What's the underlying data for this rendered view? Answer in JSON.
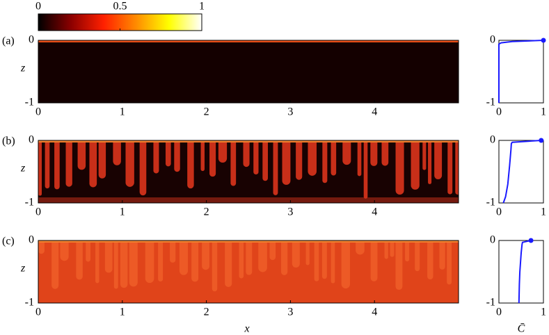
{
  "chart_data": [
    {
      "type": "colorbar",
      "lim": [
        0,
        1
      ],
      "ticks": [
        0,
        0.5,
        1
      ],
      "colors": [
        "#000000",
        "#8b0000",
        "#ff2000",
        "#ff8c00",
        "#ffff00",
        "#ffffff"
      ]
    },
    {
      "type": "field",
      "label": "(a)",
      "ylabel": "z",
      "xlim": [
        0,
        5
      ],
      "xticks": [
        0,
        1,
        2,
        3,
        4
      ],
      "ylim": [
        -1,
        0
      ],
      "yticks": [
        -1,
        0
      ],
      "background": "#140000",
      "finger_color": "#e8501a"
    },
    {
      "type": "line",
      "x": [
        0,
        0,
        0.05,
        0.3,
        1
      ],
      "y": [
        -1,
        -0.06,
        -0.04,
        -0.02,
        0
      ],
      "color": "#1a1aff",
      "xlim": [
        0,
        1
      ],
      "xticks": [
        0,
        1
      ],
      "ylim": [
        -1,
        0
      ],
      "yticks": [
        -1,
        0
      ]
    },
    {
      "type": "field",
      "label": "(b)",
      "ylabel": "z",
      "xlim": [
        0,
        5
      ],
      "xticks": [
        0,
        1,
        2,
        3,
        4
      ],
      "ylim": [
        -1,
        0
      ],
      "yticks": [
        -1,
        0
      ],
      "background": "#180202",
      "finger_color": "#d2321a"
    },
    {
      "type": "line",
      "x": [
        0.1,
        0.12,
        0.15,
        0.2,
        0.24,
        0.27,
        0.28,
        0.3,
        0.95
      ],
      "y": [
        -1,
        -0.96,
        -0.9,
        -0.7,
        -0.4,
        -0.15,
        -0.05,
        -0.03,
        0
      ],
      "color": "#1a1aff",
      "xlim": [
        0,
        1
      ],
      "xticks": [
        0,
        1
      ],
      "ylim": [
        -1,
        0
      ],
      "yticks": [
        -1,
        0
      ]
    },
    {
      "type": "field",
      "label": "(c)",
      "ylabel": "z",
      "xlabel": "x",
      "xlim": [
        0,
        5
      ],
      "xticks": [
        0,
        1,
        2,
        3,
        4
      ],
      "ylim": [
        -1,
        0
      ],
      "yticks": [
        -1,
        0
      ],
      "background": "#e0441a",
      "finger_color": "#f2642c"
    },
    {
      "type": "line",
      "x": [
        0.45,
        0.46,
        0.47,
        0.5,
        0.52,
        0.53,
        0.72
      ],
      "y": [
        -1,
        -0.7,
        -0.5,
        -0.2,
        -0.06,
        -0.03,
        0
      ],
      "color": "#1a1aff",
      "xlabel": "C̄",
      "xlim": [
        0,
        1
      ],
      "xticks": [
        0,
        1
      ],
      "ylim": [
        -1,
        0
      ],
      "yticks": [
        -1,
        0
      ]
    }
  ]
}
